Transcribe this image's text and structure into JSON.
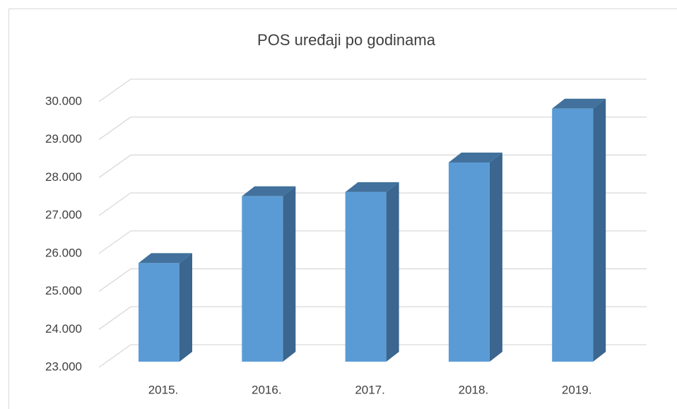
{
  "chart_data": {
    "type": "bar",
    "title": "POS uređaji po godinama",
    "categories": [
      "2015.",
      "2016.",
      "2017.",
      "2018.",
      "2019."
    ],
    "values": [
      25600,
      27360,
      27470,
      28250,
      29670
    ],
    "color": "#5b9bd5",
    "ylim": [
      23000,
      30000
    ],
    "yticks": [
      {
        "value": 23000,
        "label": "23.000"
      },
      {
        "value": 24000,
        "label": "24.000"
      },
      {
        "value": 25000,
        "label": "25.000"
      },
      {
        "value": 26000,
        "label": "26.000"
      },
      {
        "value": 27000,
        "label": "27.000"
      },
      {
        "value": 28000,
        "label": "28.000"
      },
      {
        "value": 29000,
        "label": "29.000"
      },
      {
        "value": 30000,
        "label": "30.000"
      }
    ],
    "grid": true
  }
}
